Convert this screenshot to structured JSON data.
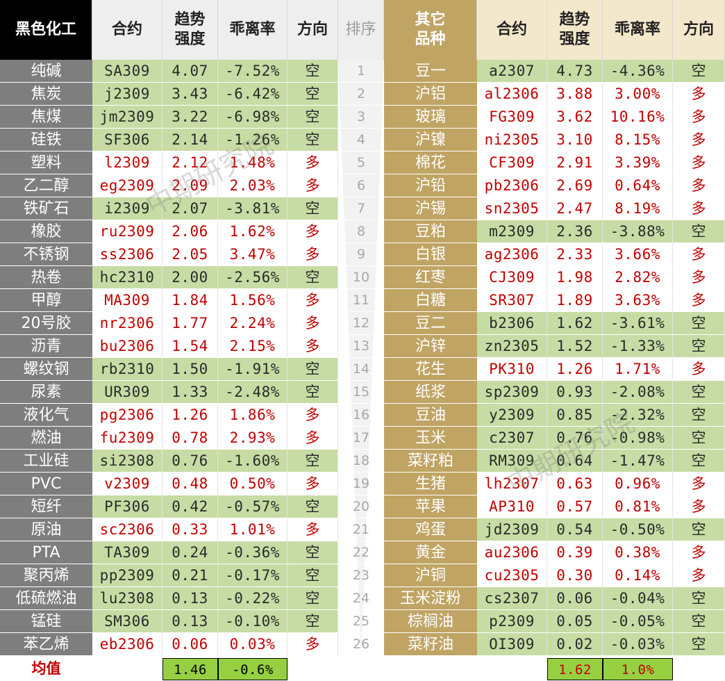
{
  "headers": {
    "left_category": "黑色化工",
    "contract": "合约",
    "trend": "趋势强度",
    "deviation": "乖离率",
    "direction": "方向",
    "rank": "排序",
    "right_category": "其它品种"
  },
  "left_rows": [
    {
      "name": "纯碱",
      "contract": "SA309",
      "trend": "4.07",
      "dev": "-7.52%",
      "dir": "空"
    },
    {
      "name": "焦炭",
      "contract": "j2309",
      "trend": "3.43",
      "dev": "-6.42%",
      "dir": "空"
    },
    {
      "name": "焦煤",
      "contract": "jm2309",
      "trend": "3.22",
      "dev": "-6.98%",
      "dir": "空"
    },
    {
      "name": "硅铁",
      "contract": "SF306",
      "trend": "2.14",
      "dev": "-1.26%",
      "dir": "空"
    },
    {
      "name": "塑料",
      "contract": "l2309",
      "trend": "2.12",
      "dev": "1.48%",
      "dir": "多"
    },
    {
      "name": "乙二醇",
      "contract": "eg2309",
      "trend": "2.09",
      "dev": "2.03%",
      "dir": "多"
    },
    {
      "name": "铁矿石",
      "contract": "i2309",
      "trend": "2.07",
      "dev": "-3.81%",
      "dir": "空"
    },
    {
      "name": "橡胶",
      "contract": "ru2309",
      "trend": "2.06",
      "dev": "1.62%",
      "dir": "多"
    },
    {
      "name": "不锈钢",
      "contract": "ss2306",
      "trend": "2.05",
      "dev": "3.47%",
      "dir": "多"
    },
    {
      "name": "热卷",
      "contract": "hc2310",
      "trend": "2.00",
      "dev": "-2.56%",
      "dir": "空"
    },
    {
      "name": "甲醇",
      "contract": "MA309",
      "trend": "1.84",
      "dev": "1.56%",
      "dir": "多"
    },
    {
      "name": "20号胶",
      "contract": "nr2306",
      "trend": "1.77",
      "dev": "2.24%",
      "dir": "多"
    },
    {
      "name": "沥青",
      "contract": "bu2306",
      "trend": "1.54",
      "dev": "2.15%",
      "dir": "多"
    },
    {
      "name": "螺纹钢",
      "contract": "rb2310",
      "trend": "1.50",
      "dev": "-1.91%",
      "dir": "空"
    },
    {
      "name": "尿素",
      "contract": "UR309",
      "trend": "1.33",
      "dev": "-2.48%",
      "dir": "空"
    },
    {
      "name": "液化气",
      "contract": "pg2306",
      "trend": "1.26",
      "dev": "1.86%",
      "dir": "多"
    },
    {
      "name": "燃油",
      "contract": "fu2309",
      "trend": "0.78",
      "dev": "2.93%",
      "dir": "多"
    },
    {
      "name": "工业硅",
      "contract": "si2308",
      "trend": "0.76",
      "dev": "-1.60%",
      "dir": "空"
    },
    {
      "name": "PVC",
      "contract": "v2309",
      "trend": "0.48",
      "dev": "0.50%",
      "dir": "多"
    },
    {
      "name": "短纤",
      "contract": "PF306",
      "trend": "0.42",
      "dev": "-0.57%",
      "dir": "空"
    },
    {
      "name": "原油",
      "contract": "sc2306",
      "trend": "0.33",
      "dev": "1.01%",
      "dir": "多"
    },
    {
      "name": "PTA",
      "contract": "TA309",
      "trend": "0.24",
      "dev": "-0.36%",
      "dir": "空"
    },
    {
      "name": "聚丙烯",
      "contract": "pp2309",
      "trend": "0.21",
      "dev": "-0.17%",
      "dir": "空"
    },
    {
      "name": "低硫燃油",
      "contract": "lu2308",
      "trend": "0.13",
      "dev": "-0.22%",
      "dir": "空"
    },
    {
      "name": "锰硅",
      "contract": "SM306",
      "trend": "0.13",
      "dev": "-0.10%",
      "dir": "空"
    },
    {
      "name": "苯乙烯",
      "contract": "eb2306",
      "trend": "0.06",
      "dev": "0.03%",
      "dir": "多"
    }
  ],
  "right_rows": [
    {
      "rank": "1",
      "name": "豆一",
      "contract": "a2307",
      "trend": "4.73",
      "dev": "-4.36%",
      "dir": "空"
    },
    {
      "rank": "2",
      "name": "沪铝",
      "contract": "al2306",
      "trend": "3.88",
      "dev": "3.00%",
      "dir": "多"
    },
    {
      "rank": "3",
      "name": "玻璃",
      "contract": "FG309",
      "trend": "3.62",
      "dev": "10.16%",
      "dir": "多"
    },
    {
      "rank": "4",
      "name": "沪镍",
      "contract": "ni2305",
      "trend": "3.10",
      "dev": "8.15%",
      "dir": "多"
    },
    {
      "rank": "5",
      "name": "棉花",
      "contract": "CF309",
      "trend": "2.91",
      "dev": "3.39%",
      "dir": "多"
    },
    {
      "rank": "6",
      "name": "沪铅",
      "contract": "pb2306",
      "trend": "2.69",
      "dev": "0.64%",
      "dir": "多"
    },
    {
      "rank": "7",
      "name": "沪锡",
      "contract": "sn2305",
      "trend": "2.47",
      "dev": "8.19%",
      "dir": "多"
    },
    {
      "rank": "8",
      "name": "豆粕",
      "contract": "m2309",
      "trend": "2.36",
      "dev": "-3.88%",
      "dir": "空"
    },
    {
      "rank": "9",
      "name": "白银",
      "contract": "ag2306",
      "trend": "2.33",
      "dev": "3.66%",
      "dir": "多"
    },
    {
      "rank": "10",
      "name": "红枣",
      "contract": "CJ309",
      "trend": "1.98",
      "dev": "2.82%",
      "dir": "多"
    },
    {
      "rank": "11",
      "name": "白糖",
      "contract": "SR307",
      "trend": "1.89",
      "dev": "3.63%",
      "dir": "多"
    },
    {
      "rank": "12",
      "name": "豆二",
      "contract": "b2306",
      "trend": "1.62",
      "dev": "-3.61%",
      "dir": "空"
    },
    {
      "rank": "13",
      "name": "沪锌",
      "contract": "zn2305",
      "trend": "1.52",
      "dev": "-1.33%",
      "dir": "空"
    },
    {
      "rank": "14",
      "name": "花生",
      "contract": "PK310",
      "trend": "1.26",
      "dev": "1.71%",
      "dir": "多"
    },
    {
      "rank": "15",
      "name": "纸浆",
      "contract": "sp2309",
      "trend": "0.93",
      "dev": "-2.08%",
      "dir": "空"
    },
    {
      "rank": "16",
      "name": "豆油",
      "contract": "y2309",
      "trend": "0.85",
      "dev": "-2.32%",
      "dir": "空"
    },
    {
      "rank": "17",
      "name": "玉米",
      "contract": "c2307",
      "trend": "0.76",
      "dev": "-0.98%",
      "dir": "空"
    },
    {
      "rank": "18",
      "name": "菜籽粕",
      "contract": "RM309",
      "trend": "0.64",
      "dev": "-1.47%",
      "dir": "空"
    },
    {
      "rank": "19",
      "name": "生猪",
      "contract": "lh2307",
      "trend": "0.63",
      "dev": "0.96%",
      "dir": "多"
    },
    {
      "rank": "20",
      "name": "苹果",
      "contract": "AP310",
      "trend": "0.57",
      "dev": "0.81%",
      "dir": "多"
    },
    {
      "rank": "21",
      "name": "鸡蛋",
      "contract": "jd2309",
      "trend": "0.54",
      "dev": "-0.50%",
      "dir": "空"
    },
    {
      "rank": "22",
      "name": "黄金",
      "contract": "au2306",
      "trend": "0.39",
      "dev": "0.38%",
      "dir": "多"
    },
    {
      "rank": "23",
      "name": "沪铜",
      "contract": "cu2305",
      "trend": "0.30",
      "dev": "0.14%",
      "dir": "多"
    },
    {
      "rank": "24",
      "name": "玉米淀粉",
      "contract": "cs2307",
      "trend": "0.06",
      "dev": "-0.04%",
      "dir": "空"
    },
    {
      "rank": "25",
      "name": "棕榈油",
      "contract": "p2309",
      "trend": "0.05",
      "dev": "-0.05%",
      "dir": "空"
    },
    {
      "rank": "26",
      "name": "菜籽油",
      "contract": "OI309",
      "trend": "0.02",
      "dev": "-0.03%",
      "dir": "空"
    }
  ],
  "average": {
    "label": "均值",
    "left_trend": "1.46",
    "left_dev": "-0.6%",
    "right_trend": "1.62",
    "right_dev": "1.0%"
  },
  "watermarks": [
    "中期研究院",
    "中期研究院"
  ],
  "colors": {
    "bear_bg": "#c6dca4",
    "bull_text": "#c00000",
    "gold": "#c0a464",
    "dark_gray": "#7e7e7e"
  }
}
